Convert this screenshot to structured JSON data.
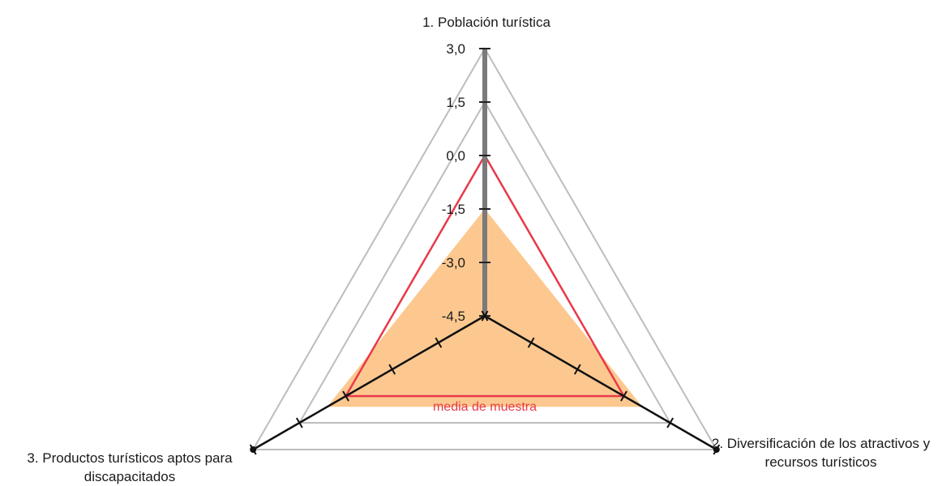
{
  "chart_data": {
    "type": "radar",
    "axes": [
      "1. Población turística",
      "2. Diversificación de los atractivos y recursos turísticos",
      "3. Productos turísticos aptos para discapacitados"
    ],
    "tick_labels": [
      "3,0",
      "1,5",
      "0,0",
      "-1,5",
      "-3,0",
      "-4,5"
    ],
    "range": [
      -4.5,
      3.0
    ],
    "grid": true,
    "series": [
      {
        "name": "",
        "values": [
          -1.5,
          0.6,
          0.6
        ],
        "style": "area",
        "color": "#fcc88f"
      },
      {
        "name": "media de muestra",
        "values": [
          0.0,
          0.0,
          0.0
        ],
        "style": "line",
        "color": "#e8394a"
      },
      {
        "name": "",
        "values": [
          null,
          3.0,
          3.0
        ],
        "style": "line",
        "color": "#111111"
      }
    ],
    "gridline_color": "#bdbdbd",
    "axis_color": "#7a7a7a"
  }
}
